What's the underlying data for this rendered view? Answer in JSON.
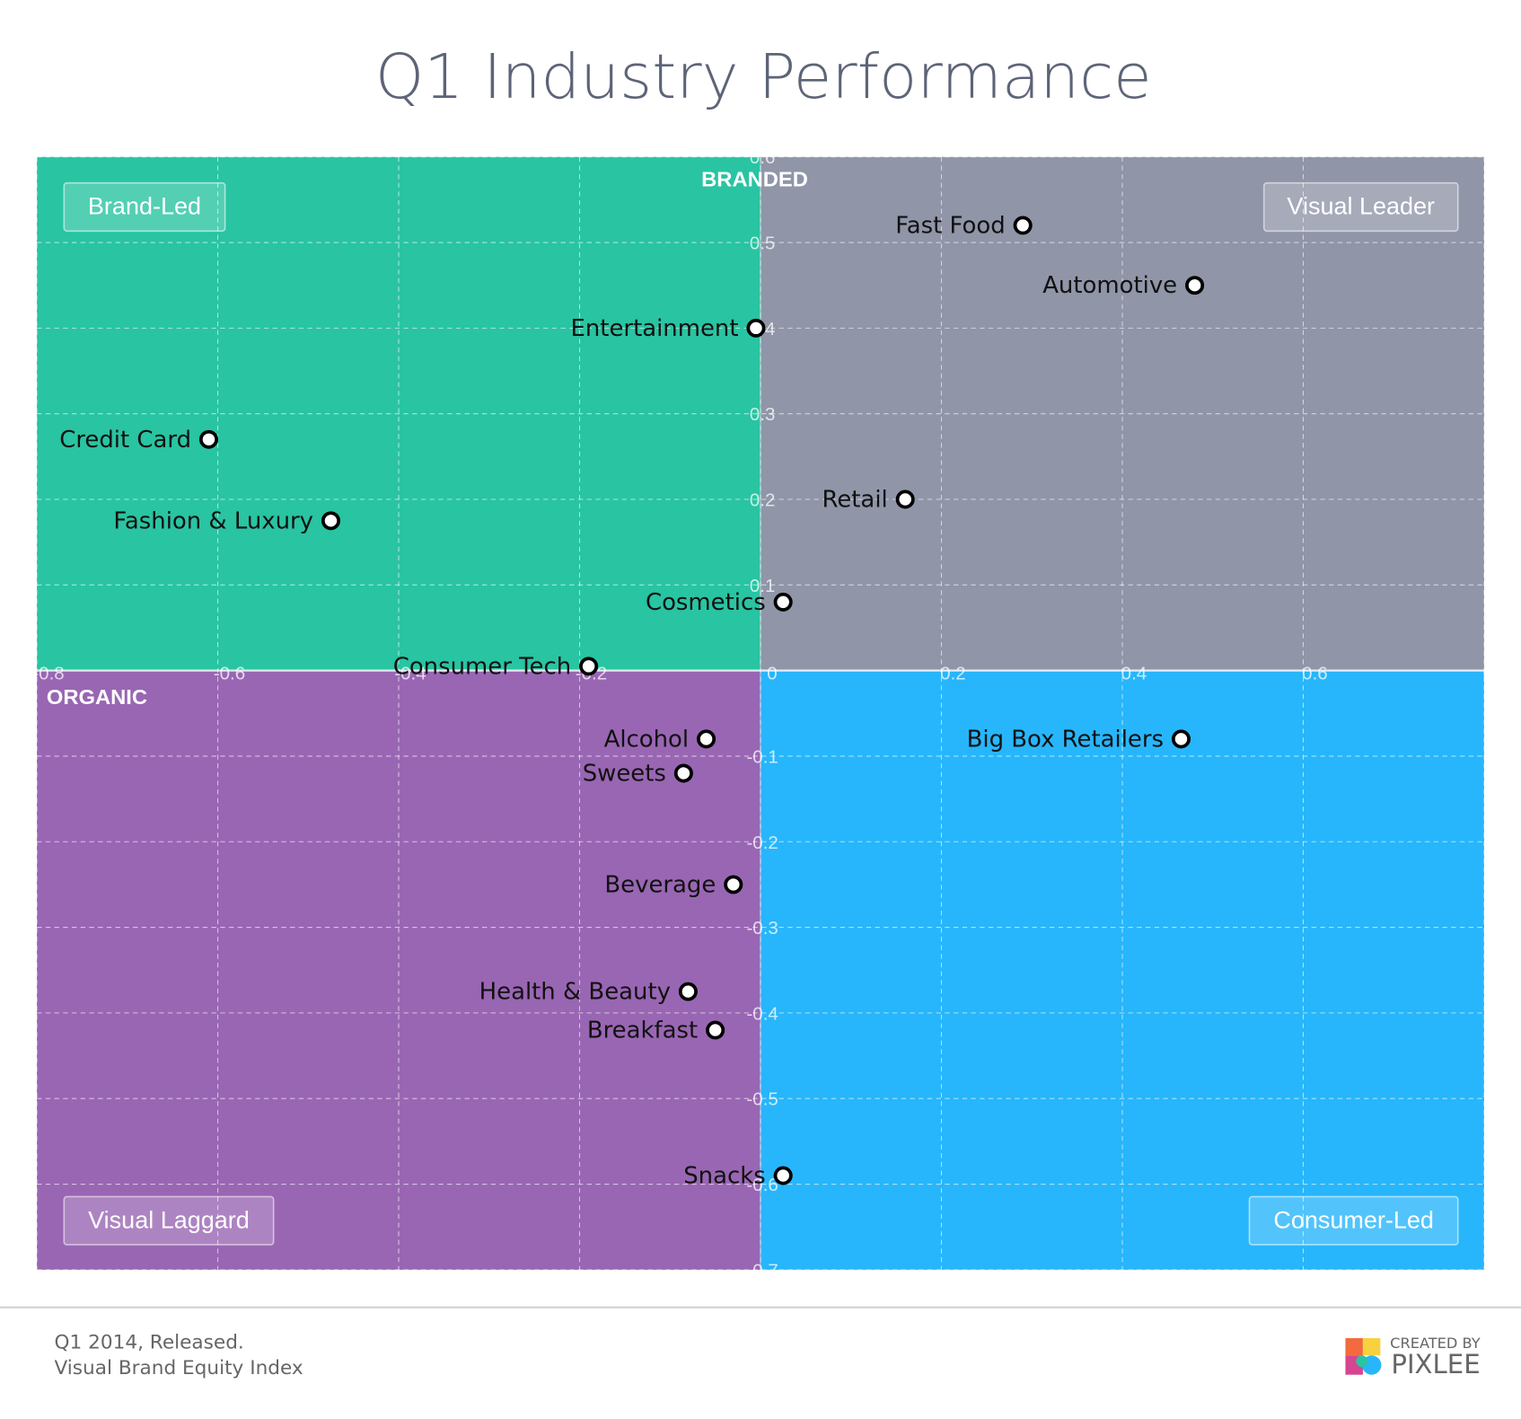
{
  "chart_data": {
    "type": "scatter",
    "title": "Q1 Industry Performance",
    "labels": [
      "Fast Food",
      "Automotive",
      "Entertainment",
      "Credit Card",
      "Fashion & Luxury",
      "Retail",
      "Cosmetics",
      "Consumer Tech",
      "Alcohol",
      "Sweets",
      "Big Box Retailers",
      "Beverage",
      "Health & Beauty",
      "Breakfast",
      "Snacks"
    ],
    "x": [
      0.29,
      0.48,
      -0.005,
      -0.61,
      -0.475,
      0.16,
      0.025,
      -0.19,
      -0.06,
      -0.085,
      0.465,
      -0.03,
      -0.08,
      -0.05,
      0.025
    ],
    "y": [
      0.52,
      0.45,
      0.4,
      0.27,
      0.175,
      0.2,
      0.08,
      0.005,
      -0.08,
      -0.12,
      -0.08,
      -0.25,
      -0.375,
      -0.42,
      -0.59
    ],
    "xlim": [
      -0.8,
      0.8
    ],
    "ylim": [
      -0.7,
      0.6
    ],
    "xticks": [
      -0.8,
      -0.6,
      -0.4,
      -0.2,
      0,
      0.2,
      0.4,
      0.6,
      0.8
    ],
    "yticks": [
      -0.7,
      -0.6,
      -0.5,
      -0.4,
      -0.3,
      -0.2,
      -0.1,
      0.1,
      0.2,
      0.3,
      0.4,
      0.5,
      0.6
    ],
    "grid": true,
    "axis_labels": {
      "top": "BRANDED",
      "bottom": "ORGANIC"
    },
    "quadrants": {
      "top_left": "Brand-Led",
      "top_right": "Visual Leader",
      "bottom_left": "Visual Laggard",
      "bottom_right": "Consumer-Led"
    },
    "quadrant_colors": {
      "top_left": "#29c4a2",
      "top_right": "#9095a8",
      "bottom_left": "#9966b3",
      "bottom_right": "#27b6fb"
    }
  },
  "footer": {
    "lines": [
      "Q1 2014, Released.",
      "Visual Brand Equity Index"
    ],
    "credit": "CREATED BY",
    "brand": "PIXLEE"
  }
}
